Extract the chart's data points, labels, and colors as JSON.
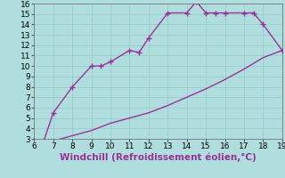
{
  "xlabel": "Windchill (Refroidissement éolien,°C)",
  "x_upper": [
    6,
    6.5,
    7,
    8,
    9,
    9.5,
    10,
    11,
    11.5,
    12,
    13,
    14,
    14.5,
    15,
    15.5,
    16,
    17,
    17.5,
    18,
    19
  ],
  "y_upper": [
    2.8,
    2.8,
    5.5,
    8,
    10,
    10,
    10.4,
    11.5,
    11.3,
    12.7,
    15.1,
    15.1,
    16.2,
    15.1,
    15.1,
    15.1,
    15.1,
    15.1,
    14.0,
    11.5
  ],
  "x_lower": [
    6,
    7,
    8,
    9,
    10,
    11,
    12,
    13,
    14,
    15,
    16,
    17,
    18,
    19
  ],
  "y_lower": [
    2.8,
    2.8,
    3.3,
    3.8,
    4.5,
    5.0,
    5.5,
    6.2,
    7.0,
    7.8,
    8.7,
    9.7,
    10.8,
    11.5
  ],
  "line_color": "#993399",
  "marker_color": "#993399",
  "bg_color": "#b0dede",
  "grid_color": "#9ecece",
  "xlim": [
    6,
    19
  ],
  "ylim": [
    3,
    16
  ],
  "xticks": [
    6,
    7,
    8,
    9,
    10,
    11,
    12,
    13,
    14,
    15,
    16,
    17,
    18,
    19
  ],
  "yticks": [
    3,
    4,
    5,
    6,
    7,
    8,
    9,
    10,
    11,
    12,
    13,
    14,
    15,
    16
  ],
  "tick_fontsize": 6.5,
  "xlabel_fontsize": 7.5,
  "marker_size": 4,
  "line_width": 1.0
}
